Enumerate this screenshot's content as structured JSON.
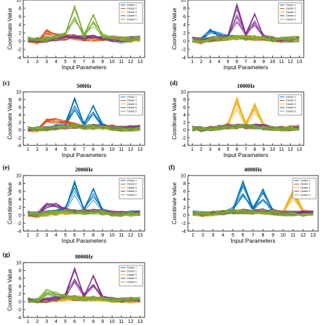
{
  "colors": [
    "#0072bd",
    "#d95319",
    "#edb120",
    "#7e2f8e",
    "#77ac30"
  ],
  "chart_data": [
    {
      "type": "line",
      "panel": "",
      "xlabel": "Input Parameters",
      "ylabel": "Coordinate Value",
      "title": "",
      "x": [
        1,
        2,
        3,
        4,
        5,
        6,
        7,
        8,
        9,
        10,
        11,
        12,
        13
      ],
      "ylim": [
        -4,
        10
      ],
      "yticks": [
        -4,
        -2,
        0,
        2,
        4,
        6,
        8,
        10
      ],
      "grid": false,
      "legend_position": "top-right",
      "series": [
        {
          "name": "Cluster 1",
          "values": [
            0.5,
            0.3,
            0.4,
            0.6,
            0.8,
            0.9,
            0.7,
            0.8,
            0.6,
            0.2,
            0.1,
            0.2,
            0.3
          ]
        },
        {
          "name": "Cluster 2",
          "values": [
            0.3,
            -0.2,
            2.8,
            1.5,
            1.0,
            0.8,
            0.6,
            0.5,
            0.6,
            0.8,
            0.5,
            0.3,
            0.5
          ]
        },
        {
          "name": "Cluster 3",
          "values": [
            0.2,
            0.0,
            0.3,
            0.5,
            0.7,
            0.7,
            1.0,
            0.8,
            0.6,
            0.4,
            0.3,
            0.2,
            0.4
          ]
        },
        {
          "name": "Cluster 4",
          "values": [
            0.4,
            0.2,
            0.3,
            0.6,
            0.9,
            1.0,
            0.8,
            1.0,
            0.8,
            0.5,
            0.4,
            0.6,
            0.8
          ]
        },
        {
          "name": "Cluster 5",
          "values": [
            0.6,
            0.3,
            0.5,
            0.8,
            1.5,
            8.5,
            1.5,
            6.5,
            1.2,
            0.6,
            0.4,
            0.5,
            0.6
          ]
        }
      ]
    },
    {
      "type": "line",
      "panel": "",
      "xlabel": "Input Parameters",
      "ylabel": "Coordinate Value",
      "title": "",
      "x": [
        1,
        2,
        3,
        4,
        5,
        6,
        7,
        8,
        9,
        10,
        11,
        12,
        13
      ],
      "ylim": [
        -4,
        10
      ],
      "yticks": [
        -4,
        -2,
        0,
        2,
        4,
        6,
        8,
        10
      ],
      "grid": false,
      "legend_position": "top-right",
      "series": [
        {
          "name": "Cluster 1",
          "values": [
            0.5,
            0.4,
            2.5,
            1.5,
            1.0,
            0.9,
            0.7,
            0.8,
            0.6,
            0.3,
            0.2,
            0.3,
            0.4
          ]
        },
        {
          "name": "Cluster 2",
          "values": [
            0.3,
            -0.1,
            0.4,
            0.6,
            0.8,
            0.9,
            0.9,
            0.8,
            0.7,
            0.5,
            0.4,
            0.3,
            0.5
          ]
        },
        {
          "name": "Cluster 3",
          "values": [
            0.2,
            0.1,
            0.3,
            0.5,
            0.7,
            0.8,
            1.0,
            0.9,
            0.6,
            0.4,
            0.3,
            0.3,
            0.4
          ]
        },
        {
          "name": "Cluster 4",
          "values": [
            0.6,
            0.3,
            0.5,
            0.8,
            1.5,
            8.5,
            1.5,
            6.5,
            1.2,
            0.6,
            0.4,
            0.5,
            0.6
          ]
        },
        {
          "name": "Cluster 5",
          "values": [
            0.4,
            0.2,
            0.4,
            0.6,
            0.9,
            1.0,
            0.8,
            1.0,
            0.8,
            0.5,
            0.4,
            0.5,
            0.7
          ]
        }
      ]
    },
    {
      "type": "line",
      "panel": "(c)",
      "xlabel": "Input Parameters",
      "ylabel": "Coordinate Value",
      "title": "500Hz",
      "x": [
        1,
        2,
        3,
        4,
        5,
        6,
        7,
        8,
        9,
        10,
        11,
        12,
        13
      ],
      "ylim": [
        -4,
        10
      ],
      "yticks": [
        -4,
        -2,
        0,
        2,
        4,
        6,
        8,
        10
      ],
      "grid": false,
      "legend_position": "top-right",
      "series": [
        {
          "name": "Cluster 1",
          "values": [
            0.6,
            0.3,
            0.5,
            0.8,
            1.5,
            8.5,
            1.5,
            6.5,
            1.2,
            0.6,
            0.4,
            0.5,
            0.6
          ]
        },
        {
          "name": "Cluster 2",
          "values": [
            0.3,
            0.0,
            2.5,
            3.0,
            2.0,
            1.2,
            0.8,
            0.6,
            0.7,
            0.8,
            0.5,
            0.4,
            0.5
          ]
        },
        {
          "name": "Cluster 3",
          "values": [
            0.2,
            0.1,
            0.3,
            0.5,
            0.8,
            0.9,
            1.0,
            0.9,
            0.6,
            0.4,
            0.3,
            0.3,
            0.4
          ]
        },
        {
          "name": "Cluster 4",
          "values": [
            0.4,
            0.2,
            0.4,
            0.6,
            0.9,
            1.0,
            0.8,
            1.0,
            0.9,
            0.5,
            0.4,
            0.6,
            0.8
          ]
        },
        {
          "name": "Cluster 5",
          "values": [
            0.5,
            0.3,
            0.4,
            0.7,
            0.9,
            0.9,
            0.7,
            0.8,
            0.6,
            0.3,
            0.2,
            0.3,
            0.4
          ]
        }
      ]
    },
    {
      "type": "line",
      "panel": "(d)",
      "xlabel": "Input Parameters",
      "ylabel": "Coordinate Value",
      "title": "1000Hz",
      "x": [
        1,
        2,
        3,
        4,
        5,
        6,
        7,
        8,
        9,
        10,
        11,
        12,
        13
      ],
      "ylim": [
        -4,
        10
      ],
      "yticks": [
        -4,
        -2,
        0,
        2,
        4,
        6,
        8,
        10
      ],
      "grid": false,
      "legend_position": "top-right",
      "series": [
        {
          "name": "Cluster 1",
          "values": [
            0.5,
            0.3,
            0.4,
            0.7,
            0.9,
            1.0,
            0.8,
            0.9,
            0.7,
            0.4,
            0.3,
            0.4,
            0.5
          ]
        },
        {
          "name": "Cluster 2",
          "values": [
            0.3,
            0.1,
            0.3,
            0.6,
            0.8,
            0.9,
            0.9,
            0.8,
            0.7,
            0.5,
            0.4,
            0.3,
            0.5
          ]
        },
        {
          "name": "Cluster 3",
          "values": [
            0.6,
            0.3,
            0.5,
            0.8,
            1.5,
            8.5,
            1.5,
            7.0,
            1.2,
            0.6,
            0.4,
            0.5,
            0.6
          ]
        },
        {
          "name": "Cluster 4",
          "values": [
            0.4,
            0.2,
            0.4,
            0.6,
            1.0,
            1.1,
            0.9,
            1.0,
            0.9,
            0.6,
            0.4,
            0.6,
            0.8
          ]
        },
        {
          "name": "Cluster 5",
          "values": [
            0.2,
            0.1,
            0.3,
            0.5,
            0.7,
            0.8,
            1.0,
            0.8,
            0.6,
            0.4,
            0.3,
            0.3,
            0.4
          ]
        }
      ]
    },
    {
      "type": "line",
      "panel": "(e)",
      "xlabel": "Input Parameters",
      "ylabel": "Coordinate Value",
      "title": "2000Hz",
      "x": [
        1,
        2,
        3,
        4,
        5,
        6,
        7,
        8,
        9,
        10,
        11,
        12,
        13
      ],
      "ylim": [
        -4,
        10
      ],
      "yticks": [
        -4,
        -2,
        0,
        2,
        4,
        6,
        8,
        10
      ],
      "grid": false,
      "legend_position": "top-right",
      "series": [
        {
          "name": "Cluster 1",
          "values": [
            0.6,
            0.3,
            0.5,
            0.8,
            1.5,
            8.5,
            1.5,
            6.5,
            1.2,
            0.6,
            0.4,
            0.5,
            0.6
          ]
        },
        {
          "name": "Cluster 2",
          "values": [
            0.3,
            0.0,
            0.4,
            0.6,
            0.8,
            0.9,
            0.8,
            0.8,
            0.7,
            0.5,
            0.4,
            0.3,
            0.5
          ]
        },
        {
          "name": "Cluster 3",
          "values": [
            0.2,
            0.1,
            0.3,
            0.5,
            0.7,
            0.8,
            1.0,
            0.8,
            0.6,
            0.4,
            0.3,
            0.3,
            0.4
          ]
        },
        {
          "name": "Cluster 4",
          "values": [
            0.4,
            0.2,
            3.0,
            2.5,
            1.5,
            1.0,
            0.8,
            1.0,
            0.8,
            0.5,
            0.4,
            0.6,
            0.8
          ]
        },
        {
          "name": "Cluster 5",
          "values": [
            0.5,
            0.3,
            0.4,
            0.7,
            0.9,
            0.9,
            0.7,
            0.8,
            0.6,
            0.3,
            0.2,
            0.3,
            0.4
          ]
        }
      ]
    },
    {
      "type": "line",
      "panel": "(f)",
      "xlabel": "Input Parameters",
      "ylabel": "Coordinate Value",
      "title": "4000Hz",
      "x": [
        1,
        2,
        3,
        4,
        5,
        6,
        7,
        8,
        9,
        10,
        11,
        12,
        13
      ],
      "ylim": [
        -4,
        10
      ],
      "yticks": [
        -4,
        -2,
        0,
        2,
        4,
        6,
        8,
        10
      ],
      "grid": false,
      "legend_position": "top-right",
      "series": [
        {
          "name": "Cluster 1",
          "values": [
            0.6,
            0.3,
            0.5,
            0.8,
            1.5,
            8.5,
            1.5,
            6.5,
            1.2,
            0.6,
            0.4,
            0.5,
            0.6
          ]
        },
        {
          "name": "Cluster 2",
          "values": [
            0.3,
            0.0,
            0.4,
            0.6,
            0.8,
            0.9,
            0.8,
            0.8,
            0.7,
            0.5,
            0.4,
            0.3,
            0.5
          ]
        },
        {
          "name": "Cluster 3",
          "values": [
            0.3,
            0.2,
            0.4,
            0.6,
            0.8,
            0.9,
            0.8,
            0.8,
            0.7,
            0.6,
            6.5,
            1.0,
            0.6
          ]
        },
        {
          "name": "Cluster 4",
          "values": [
            0.4,
            0.2,
            0.4,
            0.6,
            0.9,
            1.0,
            0.8,
            1.0,
            0.9,
            0.5,
            0.4,
            0.6,
            0.8
          ]
        },
        {
          "name": "Cluster 5",
          "values": [
            0.5,
            0.3,
            0.4,
            0.7,
            0.9,
            0.9,
            0.7,
            0.8,
            0.6,
            0.3,
            0.2,
            0.3,
            0.4
          ]
        }
      ]
    },
    {
      "type": "line",
      "panel": "(g)",
      "xlabel": "Input Parameters",
      "ylabel": "Coordinate Value",
      "title": "8000Hz",
      "x": [
        1,
        2,
        3,
        4,
        5,
        6,
        7,
        8,
        9,
        10,
        11,
        12,
        13
      ],
      "ylim": [
        -4,
        10
      ],
      "yticks": [
        -4,
        -2,
        0,
        2,
        4,
        6,
        8,
        10
      ],
      "grid": false,
      "legend_position": "top-right",
      "series": [
        {
          "name": "Cluster 1",
          "values": [
            0.5,
            0.3,
            0.4,
            0.7,
            0.9,
            1.0,
            0.8,
            0.9,
            0.7,
            0.4,
            0.3,
            0.4,
            0.5
          ]
        },
        {
          "name": "Cluster 2",
          "values": [
            0.3,
            0.0,
            0.4,
            0.6,
            0.8,
            0.9,
            0.8,
            0.8,
            0.7,
            0.5,
            0.4,
            0.3,
            0.5
          ]
        },
        {
          "name": "Cluster 3",
          "values": [
            0.2,
            0.1,
            0.3,
            0.5,
            0.7,
            0.8,
            1.0,
            0.8,
            0.6,
            0.4,
            0.3,
            0.3,
            0.4
          ]
        },
        {
          "name": "Cluster 4",
          "values": [
            0.6,
            0.3,
            0.5,
            0.8,
            1.5,
            8.5,
            1.5,
            6.5,
            1.2,
            0.6,
            0.4,
            0.5,
            0.6
          ]
        },
        {
          "name": "Cluster 5",
          "values": [
            0.4,
            0.2,
            3.0,
            2.0,
            1.5,
            1.0,
            0.8,
            1.0,
            0.8,
            0.5,
            0.4,
            0.6,
            0.8
          ]
        }
      ]
    }
  ]
}
